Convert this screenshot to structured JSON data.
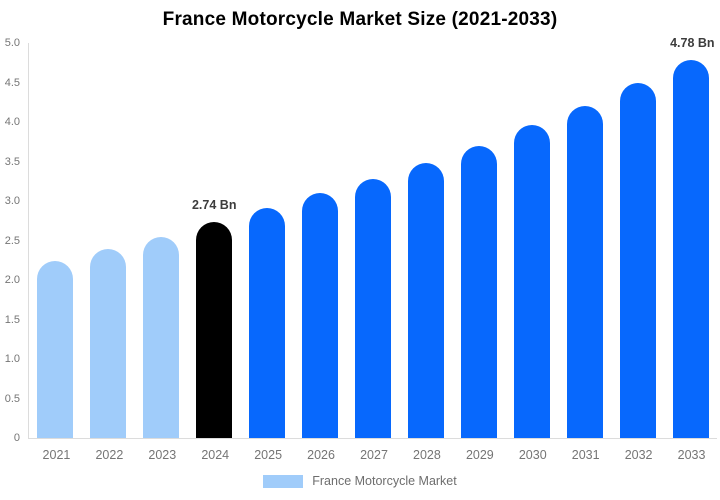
{
  "chart": {
    "title": "France Motorcycle Market Size (2021-2033)",
    "unit_suffix": "Bn"
  },
  "chart_data": {
    "type": "bar",
    "title": "France Motorcycle Market Size (2021-2033)",
    "xlabel": "",
    "ylabel": "",
    "categories": [
      "2021",
      "2022",
      "2023",
      "2024",
      "2025",
      "2026",
      "2027",
      "2028",
      "2029",
      "2030",
      "2031",
      "2032",
      "2033"
    ],
    "values": [
      2.24,
      2.39,
      2.55,
      2.74,
      2.91,
      3.1,
      3.28,
      3.48,
      3.7,
      3.96,
      4.2,
      4.49,
      4.78
    ],
    "bar_colors": [
      "#a0ccfa",
      "#a0ccfa",
      "#a0ccfa",
      "#000000",
      "#0768fd",
      "#0768fd",
      "#0768fd",
      "#0768fd",
      "#0768fd",
      "#0768fd",
      "#0768fd",
      "#0768fd",
      "#0768fd"
    ],
    "data_labels": {
      "2024": "2.74 Bn",
      "2033": "4.78 Bn"
    },
    "ylim": [
      0,
      5
    ],
    "ytick_labels": [
      "5.0",
      "4.5",
      "4.0",
      "3.5",
      "3.0",
      "2.5",
      "2.0",
      "1.5",
      "1.0",
      "0.5",
      "0"
    ],
    "grid": false,
    "legend_position": "bottom",
    "legend": [
      {
        "label": "France Motorcycle Market",
        "color": "#a0ccfa"
      }
    ]
  },
  "colors": {
    "bar_light_blue": "#a0ccfa",
    "bar_accent_blue": "#0768fd",
    "bar_highlight_black": "#000000",
    "axis_line": "#dcdcdc",
    "axis_text": "#757575",
    "data_label_text": "#3d3d3d",
    "legend_text": "#6e6e6e",
    "title_text": "#000000",
    "background": "#ffffff"
  }
}
